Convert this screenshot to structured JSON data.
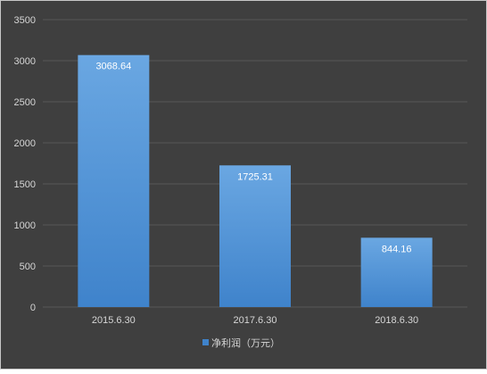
{
  "chart_data": {
    "type": "bar",
    "title": "",
    "xlabel": "",
    "ylabel": "",
    "categories": [
      "2015.6.30",
      "2017.6.30",
      "2018.6.30"
    ],
    "series": [
      {
        "name": "净利润（万元）",
        "values": [
          3068.64,
          1725.31,
          844.16
        ]
      }
    ],
    "data_labels": [
      "3068.64",
      "1725.31",
      "844.16"
    ],
    "ylim": [
      0,
      3500
    ],
    "yticks": [
      0,
      500,
      1000,
      1500,
      2000,
      2500,
      3000,
      3500
    ],
    "grid": true,
    "legend_position": "bottom",
    "colors": {
      "background": "#3f3f3f",
      "gridline": "#575757",
      "bar_top": "#6aa7e2",
      "bar_bottom": "#3f83cb",
      "tick_text": "#d6d6d6",
      "data_label_text": "#ffffff",
      "border": "#c8c8c8"
    }
  }
}
